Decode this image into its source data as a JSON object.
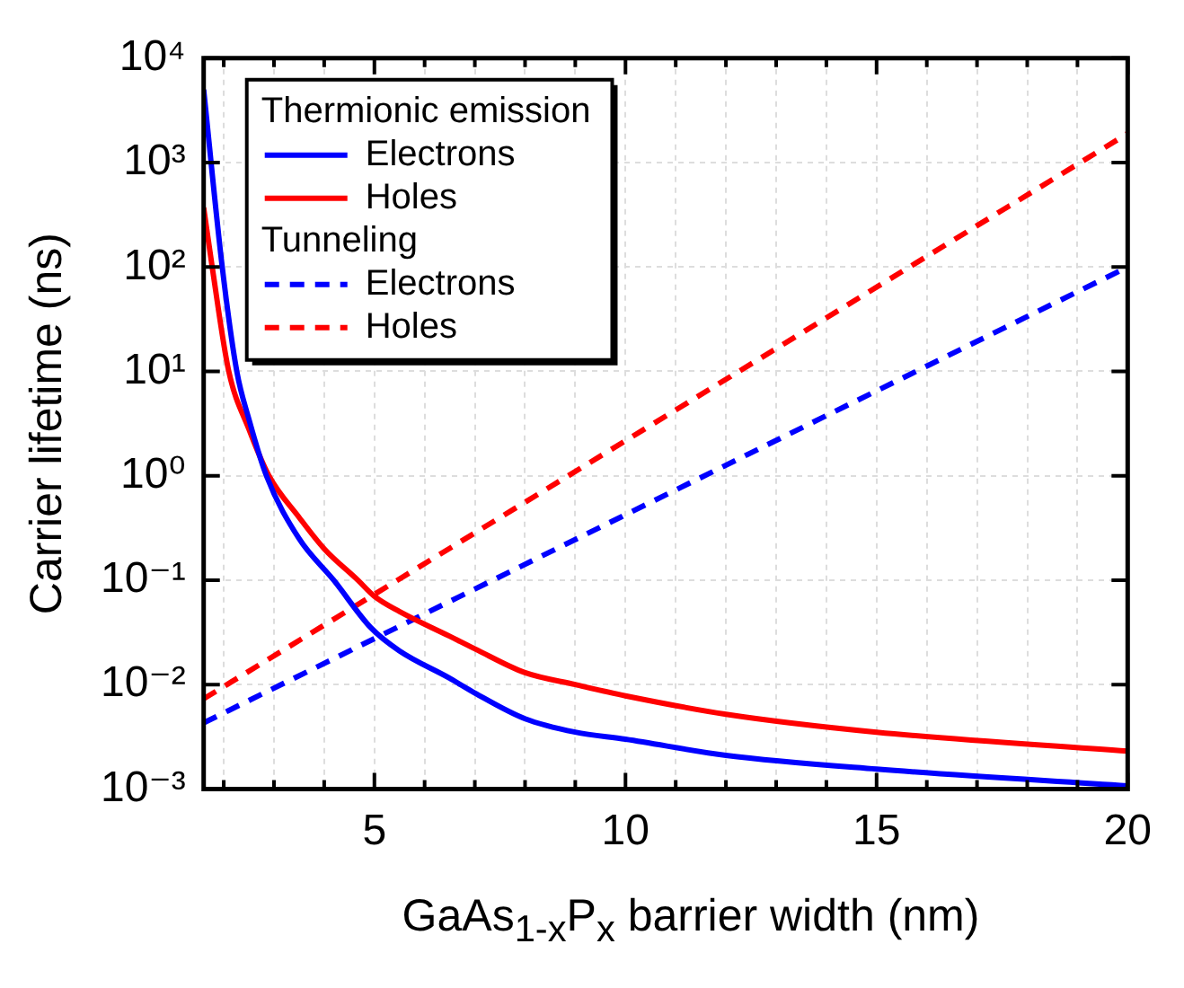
{
  "chart_data": {
    "type": "line",
    "xlabel": "GaAs$_{1-x}$P$_{x}$ barrier width (nm)",
    "ylabel": "Carrier lifetime (ns)",
    "annotations": [
      "Thermionic emission",
      "Tunneling"
    ],
    "log": "y",
    "grid": true,
    "legend": "top left",
    "marker": "none",
    "xlim": [
      1.6,
      20
    ],
    "xticks": [
      {
        "value": 2,
        "label": null
      },
      {
        "value": 3,
        "label": null
      },
      {
        "value": 4,
        "label": null
      },
      5,
      {
        "value": 6,
        "label": null
      },
      {
        "value": 7,
        "label": null
      },
      {
        "value": 8,
        "label": null
      },
      {
        "value": 9,
        "label": null
      },
      10,
      {
        "value": 11,
        "label": null
      },
      {
        "value": 12,
        "label": null
      },
      {
        "value": 13,
        "label": null
      },
      {
        "value": 14,
        "label": null
      },
      15,
      {
        "value": 16,
        "label": null
      },
      {
        "value": 17,
        "label": null
      },
      {
        "value": 18,
        "label": null
      },
      {
        "value": 19,
        "label": null
      },
      20
    ],
    "ylim": [
      0.001,
      10000
    ],
    "yticks": [
      {
        "value": 0.001,
        "label": "10⁻³"
      },
      {
        "value": 0.01,
        "label": "10⁻²"
      },
      {
        "value": 0.1,
        "label": "10⁻¹"
      },
      {
        "value": 1,
        "label": "10⁰"
      },
      {
        "value": 10,
        "label": "10¹"
      },
      {
        "value": 100,
        "label": "10²"
      },
      {
        "value": 1000,
        "label": "10³"
      },
      {
        "value": 10000,
        "label": "10⁴"
      }
    ],
    "series": [
      {
        "name": "Electrons",
        "color": "#0000ff",
        "line_style": "solid",
        "x": [
          1.6,
          1.97,
          2.26,
          2.5,
          2.85,
          3.5,
          4.19,
          4.93,
          5.5,
          6.5,
          7,
          8,
          9,
          10,
          12,
          15,
          20
        ],
        "values": [
          5000,
          100,
          10,
          3.5,
          1,
          0.25,
          0.1,
          0.035,
          0.021,
          0.0115,
          0.0083,
          0.0047,
          0.0035,
          0.003,
          0.0021,
          0.00155,
          0.00107
        ]
      },
      {
        "name": "Holes",
        "color": "#ff0000",
        "line_style": "solid",
        "x": [
          1.6,
          1.77,
          2.1,
          2.5,
          2.9,
          3.5,
          4,
          4.67,
          5,
          5.5,
          6.5,
          7,
          8,
          9,
          10,
          12,
          15,
          20
        ],
        "values": [
          370,
          100,
          10,
          2.8,
          1,
          0.4,
          0.2,
          0.1,
          0.07,
          0.05,
          0.029,
          0.022,
          0.013,
          0.01,
          0.0078,
          0.0052,
          0.0035,
          0.0023
        ]
      },
      {
        "name": "Electrons",
        "color": "#0000ff",
        "line_style": "dashed",
        "x": [
          1.6,
          20
        ],
        "values": [
          0.0043,
          100
        ]
      },
      {
        "name": "Holes",
        "color": "#ff0000",
        "line_style": "dashed",
        "x": [
          1.6,
          20
        ],
        "values": [
          0.0073,
          1900
        ]
      }
    ]
  }
}
